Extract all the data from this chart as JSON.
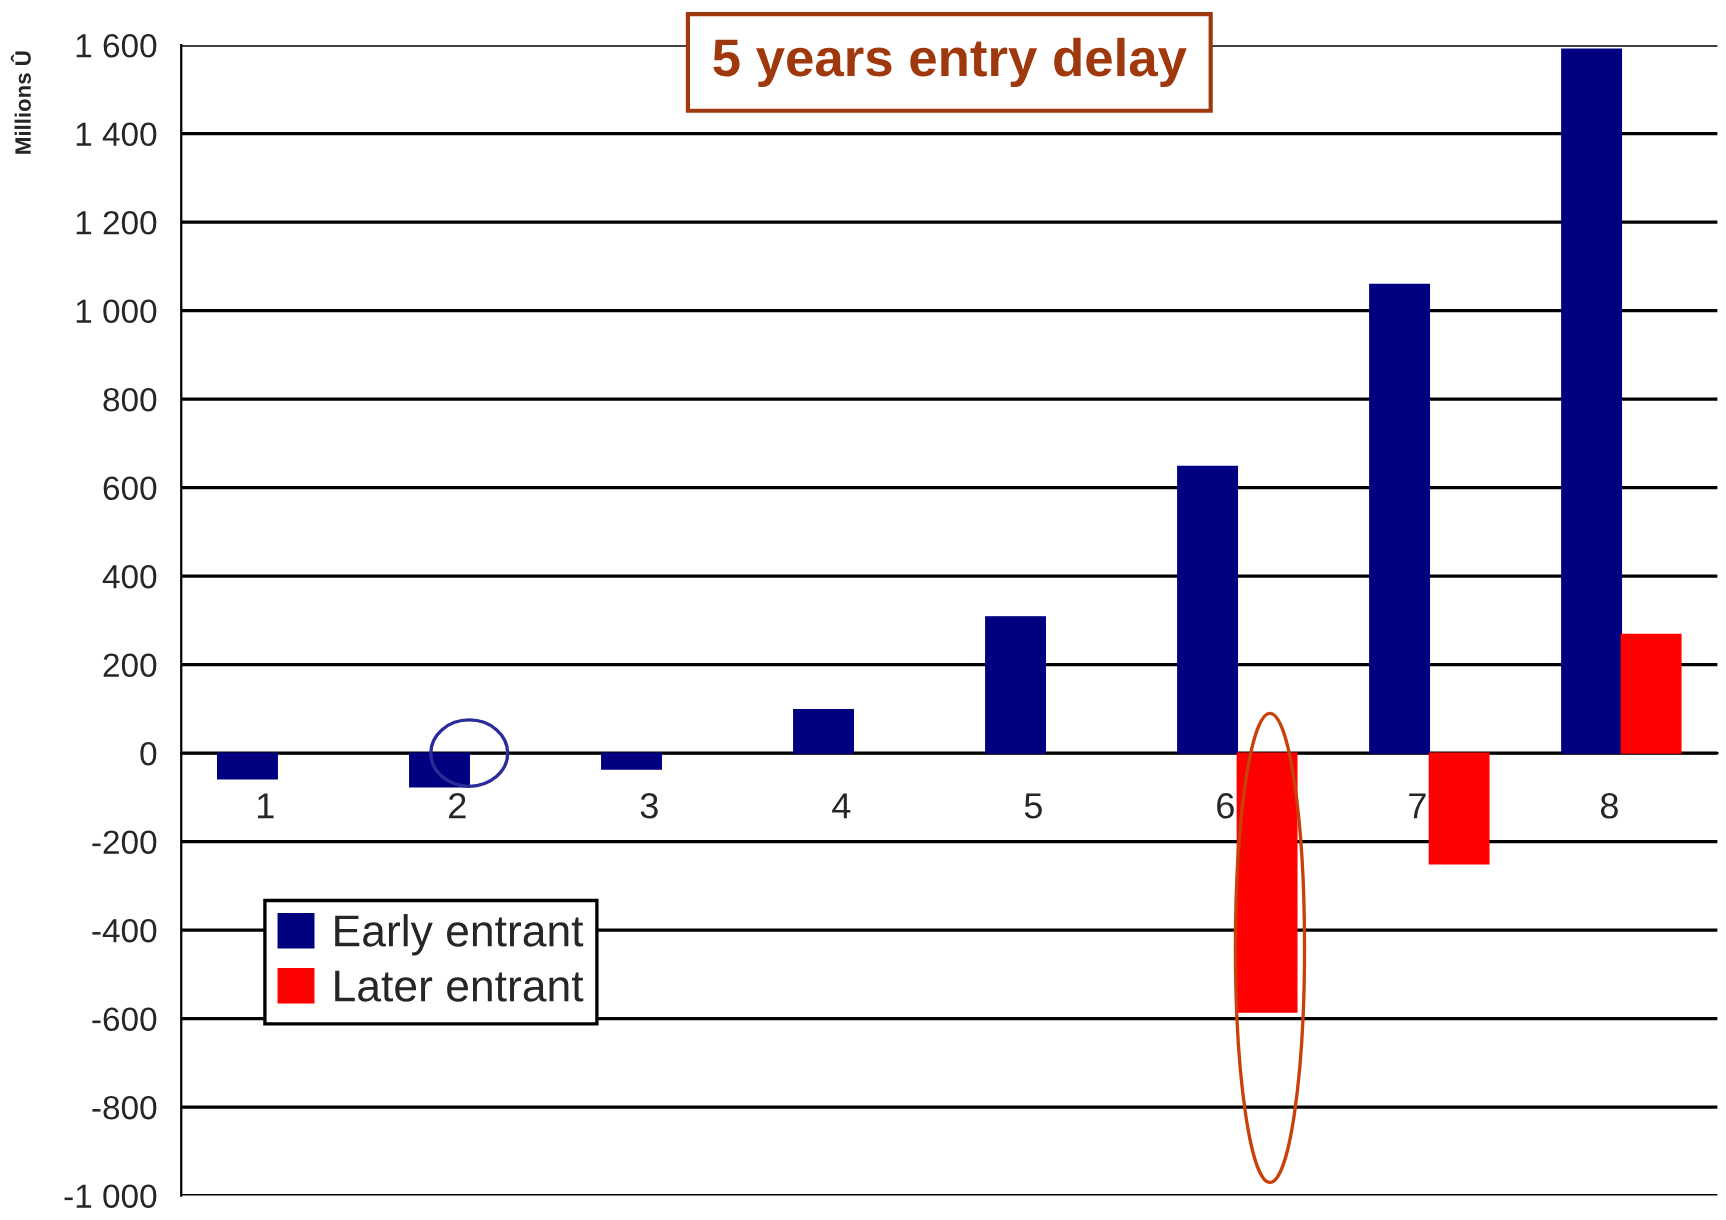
{
  "chart_data": {
    "type": "bar",
    "title": "5 years entry delay",
    "ylabel": "Millions Û",
    "categories": [
      "1",
      "2",
      "3",
      "4",
      "5",
      "6",
      "7",
      "8"
    ],
    "series": [
      {
        "name": "Early entrant",
        "color": "#000080",
        "values": [
          -58,
          -76,
          -36,
          98,
          308,
          648,
          1059,
          1591
        ]
      },
      {
        "name": "Later entrant",
        "color": "#ff0000",
        "values": [
          null,
          null,
          null,
          null,
          null,
          -585,
          -250,
          268
        ]
      }
    ],
    "ylim": [
      -1000,
      1600
    ],
    "yticks": [
      {
        "value": -1000,
        "label": "-1 000"
      },
      -800,
      -600,
      -400,
      -200,
      0,
      200,
      400,
      600,
      800,
      {
        "value": 1000,
        "label": "1 000"
      },
      {
        "value": 1200,
        "label": "1 200"
      },
      {
        "value": 1400,
        "label": "1 400"
      },
      {
        "value": 1600,
        "label": "1 600"
      }
    ],
    "grid": "y",
    "legend": "bottom left"
  }
}
